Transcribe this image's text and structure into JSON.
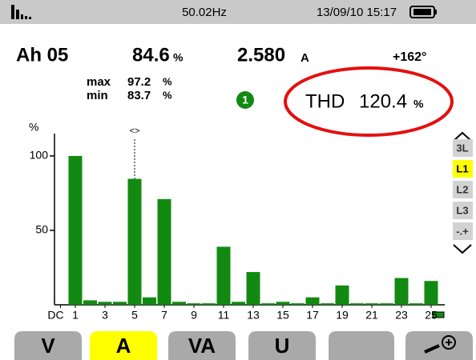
{
  "status_bar": {
    "frequency": "50.02Hz",
    "datetime": "13/09/10 15:17"
  },
  "readings": {
    "mode": "Ah 05",
    "percent": {
      "value": "84.6",
      "unit": "%"
    },
    "current": {
      "value": "2.580",
      "unit": "A"
    },
    "phase": "+162°",
    "max": {
      "label": "max",
      "value": "97.2",
      "unit": "%"
    },
    "min": {
      "label": "min",
      "value": "83.7",
      "unit": "%"
    },
    "marker": "1",
    "thd": {
      "label": "THD",
      "value": "120.4",
      "unit": "%"
    }
  },
  "chart_data": {
    "type": "bar",
    "y_label": "%",
    "cursor_label": "<>",
    "cursor_category": "5",
    "categories": [
      "DC",
      "1",
      null,
      "3",
      null,
      "5",
      null,
      "7",
      null,
      "9",
      null,
      "11",
      null,
      "13",
      null,
      "15",
      null,
      "17",
      null,
      "19",
      null,
      "21",
      null,
      "23",
      null,
      "25"
    ],
    "values": [
      0,
      100,
      3,
      2,
      2,
      84.6,
      5,
      71,
      2,
      1,
      1,
      39,
      2,
      22,
      1,
      2,
      1,
      5,
      1,
      13,
      1,
      1,
      1,
      18,
      1,
      16
    ],
    "color": "#128a12",
    "ylim": [
      0,
      115
    ],
    "yticks": [
      50,
      100
    ]
  },
  "side_buttons": {
    "items": [
      "3L",
      "L1",
      "L2",
      "L3",
      "-.+"
    ],
    "selected": "L1"
  },
  "tabs": {
    "items": [
      "V",
      "A",
      "VA",
      "U"
    ],
    "selected": "A"
  }
}
